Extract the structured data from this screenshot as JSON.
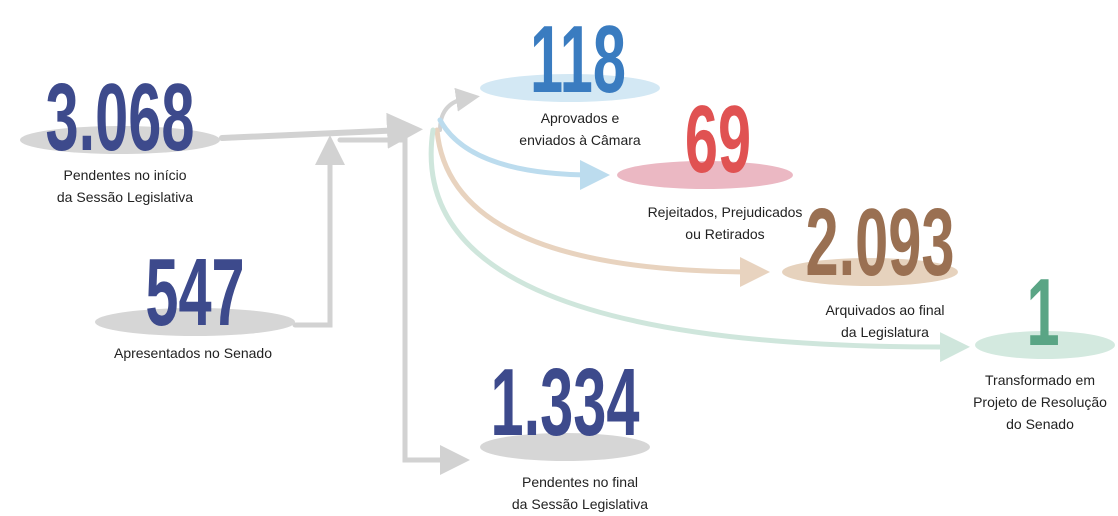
{
  "nodes": [
    {
      "value": "3.068",
      "label": [
        "Pendentes no início",
        "da Sessão Legislativa"
      ]
    },
    {
      "value": "547",
      "label": [
        "Apresentados no Senado"
      ]
    },
    {
      "value": "118",
      "label": [
        "Aprovados e",
        "enviados à Câmara"
      ]
    },
    {
      "value": "69",
      "label": [
        "Rejeitados, Prejudicados",
        "ou Retirados"
      ]
    },
    {
      "value": "2.093",
      "label": [
        "Arquivados ao final",
        "da Legislatura"
      ]
    },
    {
      "value": "1",
      "label": [
        "Transformado em",
        "Projeto de Resolução",
        "do Senado"
      ]
    },
    {
      "value": "1.334",
      "label": [
        "Pendentes no final",
        "da Sessão Legislativa"
      ]
    }
  ]
}
